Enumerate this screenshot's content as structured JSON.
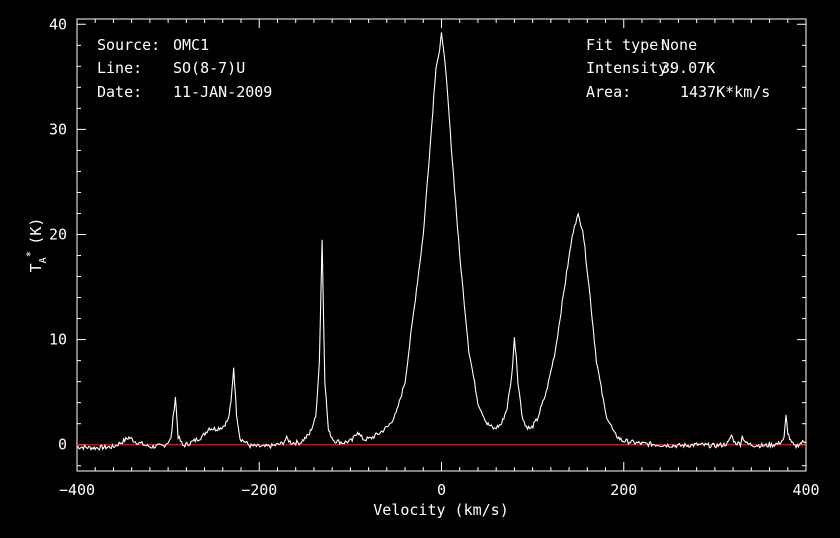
{
  "header_left": [
    {
      "label": "Source:",
      "value": "OMC1"
    },
    {
      "label": "Line:",
      "value": "SO(8-7)U"
    },
    {
      "label": "Date:",
      "value": "11-JAN-2009"
    }
  ],
  "header_right": [
    {
      "label": "Fit type:",
      "value": "None"
    },
    {
      "label": "Intensity:",
      "value": "39.07K"
    },
    {
      "label": "Area:",
      "value": "1437K*km/s"
    }
  ],
  "colors": {
    "background": "#000000",
    "axes": "#ffffff",
    "spectrum": "#ffffff",
    "baseline": "#ff2020"
  },
  "chart_data": {
    "type": "line",
    "title": "",
    "xlabel": "Velocity (km/s)",
    "ylabel": "T_A* (K)",
    "ylabel_main": "T",
    "ylabel_sub": "A",
    "ylabel_sup": "*",
    "ylabel_unit": "(K)",
    "xlim": [
      -400,
      400
    ],
    "ylim": [
      -2.5,
      40.5
    ],
    "xticks": [
      -400,
      -200,
      0,
      200,
      400
    ],
    "xtick_labels": [
      "−400",
      "−200",
      "0",
      "200",
      "400"
    ],
    "yticks": [
      0,
      10,
      20,
      30,
      40
    ],
    "ytick_labels": [
      "0",
      "10",
      "20",
      "30",
      "40"
    ],
    "baseline_y": 0,
    "grid": false,
    "series": [
      {
        "x": [
          -400,
          -380,
          -360,
          -350,
          -343,
          -336,
          -320,
          -305,
          -297,
          -292,
          -289,
          -284,
          -275,
          -262,
          -255,
          -248,
          -240,
          -234,
          -231,
          -228,
          -225,
          -221,
          -210,
          -195,
          -185,
          -175,
          -170,
          -165,
          -155,
          -145,
          -138,
          -134,
          -131,
          -128,
          -124,
          -118,
          -108,
          -98,
          -92,
          -89,
          -85,
          -78,
          -68,
          -58,
          -50,
          -40,
          -30,
          -20,
          -12,
          -6,
          -2,
          0,
          2,
          6,
          12,
          20,
          30,
          40,
          50,
          58,
          66,
          72,
          77,
          80,
          82,
          84,
          88,
          92,
          98,
          105,
          115,
          125,
          135,
          142,
          146,
          150,
          155,
          162,
          170,
          180,
          190,
          198,
          205,
          212,
          220,
          240,
          260,
          280,
          300,
          310,
          315,
          318,
          322,
          328,
          330,
          335,
          340,
          355,
          370,
          376,
          378,
          380,
          383,
          388,
          395,
          400
        ],
        "y": [
          -0.2,
          -0.3,
          -0.2,
          0.3,
          0.7,
          0.3,
          -0.2,
          -0.1,
          0.5,
          4.6,
          0.8,
          -0.1,
          0.2,
          0.8,
          1.6,
          1.5,
          1.7,
          2.4,
          4.0,
          7.4,
          3.0,
          0.6,
          -0.1,
          -0.2,
          -0.1,
          0.1,
          0.6,
          0.2,
          0.2,
          1.0,
          2.6,
          8.0,
          19.5,
          6.0,
          1.3,
          0.4,
          0.2,
          0.4,
          1.3,
          0.8,
          0.5,
          0.6,
          1.1,
          1.8,
          2.9,
          6.0,
          13.0,
          20.0,
          29.0,
          36.0,
          37.5,
          39.07,
          38.0,
          34.0,
          27.0,
          18.0,
          9.0,
          4.0,
          2.0,
          1.5,
          2.0,
          3.5,
          6.5,
          10.1,
          8.5,
          6.0,
          3.0,
          1.8,
          1.5,
          2.4,
          5.0,
          9.0,
          15.0,
          19.0,
          21.0,
          21.8,
          20.5,
          15.0,
          8.0,
          3.0,
          1.0,
          0.4,
          0.3,
          0.2,
          0.1,
          0.0,
          -0.1,
          0.0,
          -0.1,
          0.0,
          0.2,
          0.9,
          0.2,
          0.1,
          0.8,
          0.1,
          0.0,
          -0.1,
          0.1,
          0.6,
          2.7,
          1.2,
          0.3,
          -0.2,
          0.2,
          0.3
        ]
      }
    ]
  }
}
